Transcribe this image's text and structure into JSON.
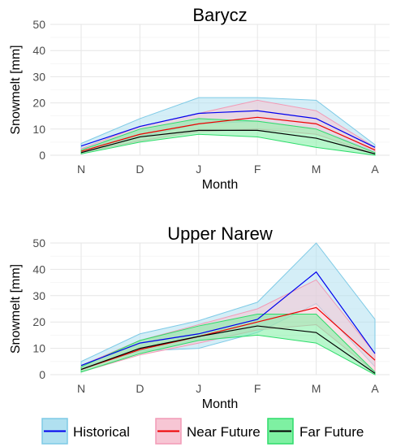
{
  "chart_data": [
    {
      "type": "line",
      "title": "Barycz",
      "xlabel": "Month",
      "ylabel": "Snowmelt [mm]",
      "categories": [
        "N",
        "D",
        "J",
        "F",
        "M",
        "A"
      ],
      "ylim": [
        0,
        50
      ],
      "yticks": [
        0,
        10,
        20,
        30,
        40,
        50
      ],
      "grid": true,
      "series": [
        {
          "name": "Historical",
          "values": [
            3.5,
            11,
            16,
            17,
            14,
            3
          ],
          "lower": [
            2.5,
            7,
            12,
            13,
            10,
            1.5
          ],
          "upper": [
            4.5,
            14,
            22,
            22,
            21,
            4
          ]
        },
        {
          "name": "Near Future",
          "values": [
            1.5,
            8,
            12,
            14.5,
            12,
            2
          ],
          "lower": [
            1,
            5.5,
            9,
            10,
            8,
            0.5
          ],
          "upper": [
            2.5,
            11,
            16,
            21,
            17,
            3
          ]
        },
        {
          "name": "Far Future",
          "values": [
            1,
            7,
            9.5,
            9.5,
            6.5,
            0.5
          ],
          "lower": [
            0.5,
            5,
            8,
            7,
            3,
            0
          ],
          "upper": [
            2,
            10,
            14,
            13,
            10,
            1
          ]
        }
      ]
    },
    {
      "type": "line",
      "title": "Upper Narew",
      "xlabel": "Month",
      "ylabel": "Snowmelt [mm]",
      "categories": [
        "N",
        "D",
        "J",
        "F",
        "M",
        "A"
      ],
      "ylim": [
        0,
        50
      ],
      "yticks": [
        0,
        10,
        20,
        30,
        40,
        50
      ],
      "grid": true,
      "series": [
        {
          "name": "Historical",
          "values": [
            3.5,
            12,
            15.5,
            21,
            39,
            8
          ],
          "lower": [
            2.5,
            9,
            10,
            16,
            27,
            3
          ],
          "upper": [
            5,
            15.5,
            20.5,
            27.5,
            50,
            21
          ]
        },
        {
          "name": "Near Future",
          "values": [
            2,
            9.5,
            14.5,
            20,
            25.5,
            5.5
          ],
          "lower": [
            1,
            7.5,
            12,
            17,
            19,
            1
          ],
          "upper": [
            3.5,
            13,
            19,
            25,
            36,
            8
          ]
        },
        {
          "name": "Far Future",
          "values": [
            2,
            10,
            14.5,
            18.5,
            16,
            0.5
          ],
          "lower": [
            1,
            8,
            13,
            15,
            12,
            0
          ],
          "upper": [
            3,
            13,
            18.5,
            23,
            23,
            1
          ]
        }
      ]
    }
  ],
  "legend": {
    "position": "bottom",
    "items": [
      {
        "label": "Historical",
        "line_color": "#0000ee",
        "fill_color": "#b0e0f0",
        "border_color": "#7ecae6"
      },
      {
        "label": "Near Future",
        "line_color": "#ee0000",
        "fill_color": "#f7c6d4",
        "border_color": "#f29ab6"
      },
      {
        "label": "Far Future",
        "line_color": "#000000",
        "fill_color": "#7ef0a2",
        "border_color": "#2ddc6a"
      }
    ]
  },
  "colors": {
    "grid": "#e6e6e6",
    "tick_text": "#4d4d4d"
  }
}
